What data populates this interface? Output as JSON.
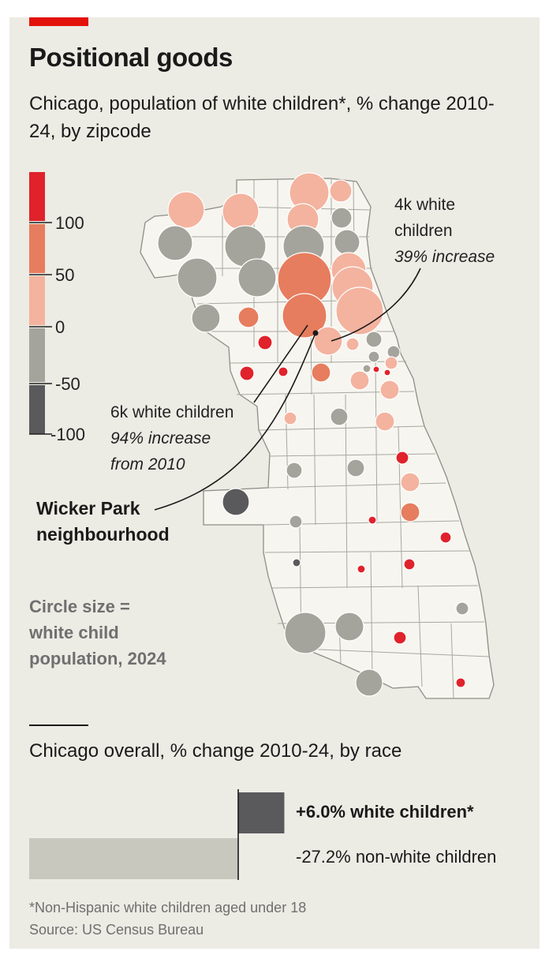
{
  "title": "Positional goods",
  "subtitle": "Chicago, population of white children*, % change 2010-24, by zipcode",
  "legend": {
    "ticks": [
      "100",
      "50",
      "0",
      "-50",
      "-100"
    ],
    "colors": [
      "#e0222b",
      "#e67d5e",
      "#f3b39f",
      "#a4a49c",
      "#5a5a5d"
    ]
  },
  "annotations": {
    "north": {
      "line1": "4k white",
      "line2": "children",
      "line3": "39% increase"
    },
    "west": {
      "line1": "6k white children",
      "line2": "94% increase",
      "line3": "from 2010"
    },
    "wicker": {
      "line1": "Wicker Park",
      "line2": "neighbourhood"
    }
  },
  "size_note": {
    "line1": "Circle size =",
    "line2": "white child",
    "line3": "population, 2024"
  },
  "bars": {
    "title": "Chicago overall, % change 2010-24, by race",
    "white_value": 6.0,
    "nonwhite_value": -27.2,
    "white_label": "+6.0% white children*",
    "nonwhite_label": "-27.2% non-white children"
  },
  "footnote": "*Non-Hispanic white children aged under 18",
  "source": "Source: US Census Bureau"
}
